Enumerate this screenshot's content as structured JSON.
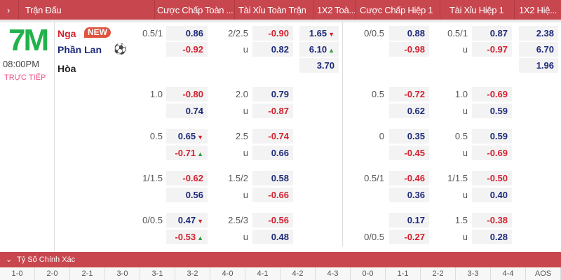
{
  "header": {
    "columns": [
      "Trận Đấu",
      "Cược Chấp Toàn ...",
      "Tài Xỉu Toàn Trận",
      "1X2 Toà...",
      "Cược Chấp Hiệp 1",
      "Tài Xỉu Hiệp 1",
      "1X2 Hiệ..."
    ]
  },
  "match": {
    "status": "TRỰC TIẾP",
    "time": "08:00PM",
    "home": "Nga",
    "away": "Phần Lan",
    "draw": "Hòa",
    "new_badge": "NEW",
    "logo": "7M",
    "logo_color": "#22b24c"
  },
  "rows": [
    {
      "hc": [
        "0.5/1",
        "0.86",
        "-0.92"
      ],
      "ou": [
        "2/2.5",
        "-0.90",
        "0.82"
      ],
      "x12": [
        "1.65",
        "6.10",
        "3.70"
      ],
      "x12_arrows": [
        "down",
        "up",
        ""
      ],
      "h1hc": [
        "0/0.5",
        "0.88",
        "-0.98"
      ],
      "h1ou": [
        "0.5/1",
        "0.87",
        "-0.97"
      ],
      "h1x12": [
        "2.38",
        "6.70",
        "1.96"
      ]
    },
    {
      "hc": [
        "1.0",
        "-0.80",
        "0.74"
      ],
      "ou": [
        "2.0",
        "0.79",
        "-0.87"
      ],
      "h1hc": [
        "0.5",
        "-0.72",
        "0.62"
      ],
      "h1ou": [
        "1.0",
        "-0.69",
        "0.59"
      ]
    },
    {
      "hc": [
        "0.5",
        "0.65",
        "-0.71"
      ],
      "hc_arrows": [
        "down",
        "up"
      ],
      "ou": [
        "2.5",
        "-0.74",
        "0.66"
      ],
      "h1hc": [
        "0",
        "0.35",
        "-0.45"
      ],
      "h1ou": [
        "0.5",
        "0.59",
        "-0.69"
      ]
    },
    {
      "hc": [
        "1/1.5",
        "-0.62",
        "0.56"
      ],
      "ou": [
        "1.5/2",
        "0.58",
        "-0.66"
      ],
      "h1hc": [
        "0.5/1",
        "-0.46",
        "0.36"
      ],
      "h1ou": [
        "1/1.5",
        "-0.50",
        "0.40"
      ]
    },
    {
      "hc": [
        "0/0.5",
        "0.47",
        "-0.53"
      ],
      "hc_arrows": [
        "down",
        "up"
      ],
      "ou": [
        "2.5/3",
        "-0.56",
        "0.48"
      ],
      "h1hc": [
        "0/0.5",
        "0.17",
        "-0.27"
      ],
      "h1hc_line_bottom": true,
      "h1ou": [
        "1.5",
        "-0.38",
        "0.28"
      ]
    }
  ],
  "under_label": "u",
  "footer": {
    "title": "Tỷ Số Chính Xác",
    "scores": [
      "1-0",
      "2-0",
      "2-1",
      "3-0",
      "3-1",
      "3-2",
      "4-0",
      "4-1",
      "4-2",
      "4-3",
      "0-0",
      "1-1",
      "2-2",
      "3-3",
      "4-4",
      "AOS"
    ]
  }
}
